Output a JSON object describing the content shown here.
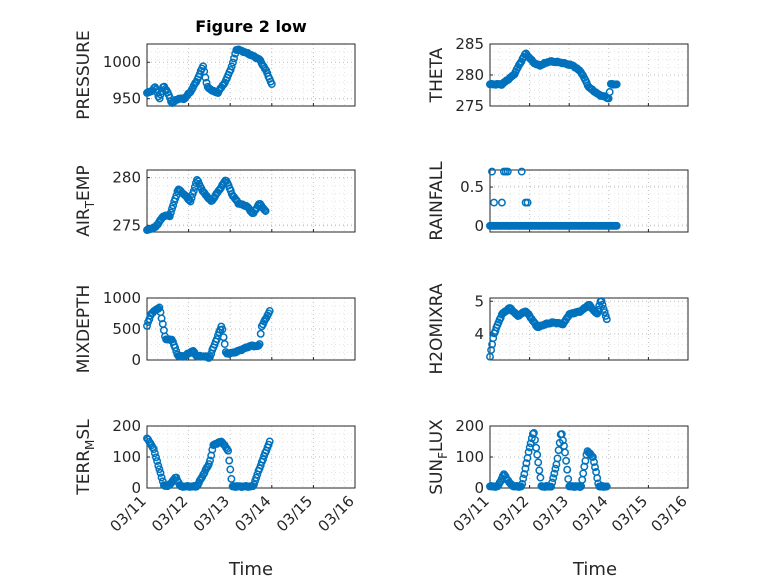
{
  "figure": {
    "title": "Figure 2 low",
    "xlabel": "Time",
    "x_tick_labels": [
      "03/11",
      "03/12",
      "03/13",
      "03/14",
      "03/15",
      "03/16"
    ],
    "marker_color": "#0072bd"
  },
  "chart_data": [
    {
      "id": "pressure",
      "type": "scatter",
      "marker": "o",
      "ylabel": "PRESSURE",
      "ylabel_sub": null,
      "ylim": [
        940,
        1025
      ],
      "yticks": [
        950,
        1000
      ],
      "ytick_labels": [
        "950",
        "1000"
      ],
      "xlim": [
        0,
        5
      ],
      "grid": true,
      "minor_grid": true,
      "title": "Figure 2 low",
      "knots": [
        [
          0,
          958
        ],
        [
          0.1,
          960
        ],
        [
          0.2,
          966
        ],
        [
          0.3,
          950
        ],
        [
          0.4,
          968
        ],
        [
          0.5,
          958
        ],
        [
          0.6,
          944
        ],
        [
          0.75,
          950
        ],
        [
          0.9,
          950
        ],
        [
          1.05,
          960
        ],
        [
          1.2,
          975
        ],
        [
          1.35,
          995
        ],
        [
          1.45,
          966
        ],
        [
          1.6,
          960
        ],
        [
          1.7,
          958
        ],
        [
          1.9,
          975
        ],
        [
          2.05,
          996
        ],
        [
          2.15,
          1018
        ],
        [
          2.3,
          1015
        ],
        [
          2.5,
          1010
        ],
        [
          2.7,
          1004
        ],
        [
          2.85,
          990
        ],
        [
          3.0,
          970
        ]
      ]
    },
    {
      "id": "theta",
      "type": "scatter",
      "marker": "o",
      "ylabel": "THETA",
      "ylabel_sub": null,
      "ylim": [
        275,
        285
      ],
      "yticks": [
        275,
        280,
        285
      ],
      "ytick_labels": [
        "275",
        "280",
        "285"
      ],
      "xlim": [
        0,
        5
      ],
      "grid": true,
      "minor_grid": true,
      "knots": [
        [
          0,
          278.5
        ],
        [
          0.3,
          278.5
        ],
        [
          0.6,
          280
        ],
        [
          0.9,
          283.5
        ],
        [
          1.1,
          282
        ],
        [
          1.25,
          281.5
        ],
        [
          1.5,
          282.2
        ],
        [
          1.8,
          282
        ],
        [
          2.1,
          281.5
        ],
        [
          2.3,
          280.5
        ],
        [
          2.5,
          278
        ],
        [
          2.75,
          276.8
        ],
        [
          2.9,
          276.5
        ],
        [
          3.0,
          276.2
        ],
        [
          3.05,
          278.5
        ],
        [
          3.2,
          278.5
        ]
      ]
    },
    {
      "id": "air_temp",
      "type": "scatter",
      "marker": "o",
      "ylabel": "AIR",
      "ylabel_sub": "T",
      "ylabel_rest": "EMP",
      "ylim": [
        274.3,
        280.8
      ],
      "yticks": [
        275,
        280
      ],
      "ytick_labels": [
        "275",
        "280"
      ],
      "xlim": [
        0,
        5
      ],
      "grid": true,
      "minor_grid": true,
      "knots": [
        [
          0,
          274.5
        ],
        [
          0.2,
          274.8
        ],
        [
          0.4,
          276
        ],
        [
          0.55,
          276
        ],
        [
          0.75,
          278.8
        ],
        [
          0.9,
          278.2
        ],
        [
          1.05,
          277.5
        ],
        [
          1.2,
          279.8
        ],
        [
          1.35,
          278.5
        ],
        [
          1.55,
          277.5
        ],
        [
          1.75,
          278.8
        ],
        [
          1.9,
          279.8
        ],
        [
          2.05,
          278.2
        ],
        [
          2.2,
          277.3
        ],
        [
          2.4,
          277
        ],
        [
          2.55,
          276.2
        ],
        [
          2.7,
          277.3
        ],
        [
          2.85,
          276.5
        ]
      ]
    },
    {
      "id": "rainfall",
      "type": "scatter",
      "marker": "o",
      "ylabel": "RAINFALL",
      "ylabel_sub": null,
      "ylim": [
        -0.08,
        0.72
      ],
      "yticks": [
        0,
        0.5
      ],
      "ytick_labels": [
        "0",
        "0.5"
      ],
      "xlim": [
        0,
        5
      ],
      "grid": true,
      "minor_grid": true,
      "knots": [
        [
          0,
          0
        ],
        [
          3.2,
          0
        ]
      ]
    },
    {
      "id": "mixdepth",
      "type": "scatter",
      "marker": "o",
      "ylabel": "MIXDEPTH",
      "ylabel_sub": null,
      "ylim": [
        0,
        1000
      ],
      "yticks": [
        0,
        500,
        1000
      ],
      "ytick_labels": [
        "0",
        "500",
        "1000"
      ],
      "xlim": [
        0,
        5
      ],
      "grid": true,
      "minor_grid": true,
      "knots": [
        [
          0,
          550
        ],
        [
          0.1,
          750
        ],
        [
          0.3,
          850
        ],
        [
          0.45,
          330
        ],
        [
          0.6,
          330
        ],
        [
          0.75,
          60
        ],
        [
          0.9,
          60
        ],
        [
          1.1,
          150
        ],
        [
          1.2,
          60
        ],
        [
          1.4,
          60
        ],
        [
          1.5,
          30
        ],
        [
          1.8,
          560
        ],
        [
          1.9,
          100
        ],
        [
          2.1,
          120
        ],
        [
          2.5,
          230
        ],
        [
          2.7,
          220
        ],
        [
          2.75,
          530
        ],
        [
          2.95,
          790
        ]
      ]
    },
    {
      "id": "h2omixra",
      "type": "scatter",
      "marker": "o",
      "ylabel": "H2OMIXRA",
      "ylabel_sub": null,
      "ylim": [
        3.2,
        5.1
      ],
      "yticks": [
        4,
        5
      ],
      "ytick_labels": [
        "4",
        "5"
      ],
      "xlim": [
        0,
        5
      ],
      "grid": true,
      "minor_grid": true,
      "knots": [
        [
          0,
          3.3
        ],
        [
          0.1,
          4.0
        ],
        [
          0.3,
          4.6
        ],
        [
          0.5,
          4.8
        ],
        [
          0.7,
          4.55
        ],
        [
          0.9,
          4.7
        ],
        [
          1.0,
          4.55
        ],
        [
          1.2,
          4.2
        ],
        [
          1.4,
          4.3
        ],
        [
          1.6,
          4.35
        ],
        [
          1.85,
          4.3
        ],
        [
          2.0,
          4.6
        ],
        [
          2.3,
          4.7
        ],
        [
          2.5,
          4.9
        ],
        [
          2.7,
          4.6
        ],
        [
          2.8,
          5.05
        ],
        [
          2.95,
          4.45
        ]
      ]
    },
    {
      "id": "terr_msl",
      "type": "scatter",
      "marker": "o",
      "ylabel": "TERR",
      "ylabel_sub": "M",
      "ylabel_rest": "SL",
      "ylim": [
        0,
        200
      ],
      "yticks": [
        0,
        100,
        200
      ],
      "ytick_labels": [
        "0",
        "100",
        "200"
      ],
      "xlim": [
        0,
        5
      ],
      "grid": true,
      "minor_grid": true,
      "knots": [
        [
          0,
          160
        ],
        [
          0.15,
          130
        ],
        [
          0.3,
          60
        ],
        [
          0.4,
          10
        ],
        [
          0.5,
          5
        ],
        [
          0.7,
          35
        ],
        [
          0.8,
          5
        ],
        [
          1.2,
          5
        ],
        [
          1.5,
          80
        ],
        [
          1.6,
          140
        ],
        [
          1.8,
          150
        ],
        [
          1.95,
          120
        ],
        [
          2.05,
          5
        ],
        [
          2.55,
          5
        ],
        [
          2.75,
          80
        ],
        [
          2.95,
          150
        ]
      ]
    },
    {
      "id": "sun_flux",
      "type": "scatter",
      "marker": "o",
      "ylabel": "SUN",
      "ylabel_sub": "F",
      "ylabel_rest": "LUX",
      "ylim": [
        0,
        200
      ],
      "yticks": [
        0,
        100,
        200
      ],
      "ytick_labels": [
        "0",
        "100",
        "200"
      ],
      "xlim": [
        0,
        5
      ],
      "grid": true,
      "minor_grid": true,
      "knots": [
        [
          0,
          5
        ],
        [
          0.2,
          5
        ],
        [
          0.35,
          45
        ],
        [
          0.5,
          15
        ],
        [
          0.6,
          5
        ],
        [
          0.8,
          5
        ],
        [
          1.0,
          130
        ],
        [
          1.1,
          185
        ],
        [
          1.2,
          100
        ],
        [
          1.3,
          5
        ],
        [
          1.55,
          5
        ],
        [
          1.7,
          90
        ],
        [
          1.8,
          185
        ],
        [
          1.9,
          110
        ],
        [
          2.0,
          5
        ],
        [
          2.3,
          5
        ],
        [
          2.45,
          120
        ],
        [
          2.6,
          100
        ],
        [
          2.75,
          5
        ],
        [
          2.95,
          5
        ]
      ]
    }
  ]
}
